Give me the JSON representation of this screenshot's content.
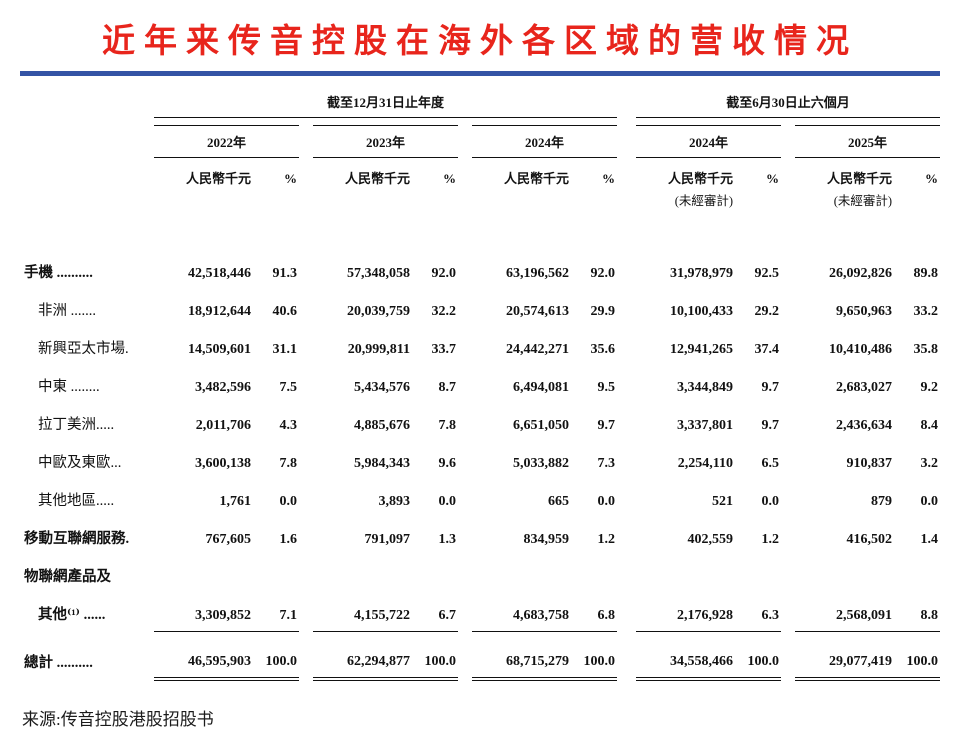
{
  "page": {
    "title": "近年来传音控股在海外各区域的营收情况",
    "source": "来源:传音控股港股招股书"
  },
  "colors": {
    "title_red": "#e8251c",
    "rule_blue": "#3454a5"
  },
  "table": {
    "group_headers": [
      {
        "label": "截至12月31日止年度"
      },
      {
        "label": "截至6月30日止六個月"
      }
    ],
    "years": [
      {
        "label": "2022年",
        "unit": "人民幣千元",
        "pct": "%",
        "note": ""
      },
      {
        "label": "2023年",
        "unit": "人民幣千元",
        "pct": "%",
        "note": ""
      },
      {
        "label": "2024年",
        "unit": "人民幣千元",
        "pct": "%",
        "note": ""
      },
      {
        "label": "2024年",
        "unit": "人民幣千元",
        "pct": "%",
        "note": "(未經審計)"
      },
      {
        "label": "2025年",
        "unit": "人民幣千元",
        "pct": "%",
        "note": "(未經審計)"
      }
    ],
    "rows": [
      {
        "label": "手機 ..........",
        "indent": false,
        "bold": true,
        "rule": "",
        "total": false,
        "values": [
          "42,518,446",
          "91.3",
          "57,348,058",
          "92.0",
          "63,196,562",
          "92.0",
          "31,978,979",
          "92.5",
          "26,092,826",
          "89.8"
        ]
      },
      {
        "label": "非洲 .......",
        "indent": true,
        "bold": false,
        "rule": "",
        "total": false,
        "values": [
          "18,912,644",
          "40.6",
          "20,039,759",
          "32.2",
          "20,574,613",
          "29.9",
          "10,100,433",
          "29.2",
          "9,650,963",
          "33.2"
        ]
      },
      {
        "label": "新興亞太市場.",
        "indent": true,
        "bold": false,
        "rule": "",
        "total": false,
        "values": [
          "14,509,601",
          "31.1",
          "20,999,811",
          "33.7",
          "24,442,271",
          "35.6",
          "12,941,265",
          "37.4",
          "10,410,486",
          "35.8"
        ]
      },
      {
        "label": "中東 ........",
        "indent": true,
        "bold": false,
        "rule": "",
        "total": false,
        "values": [
          "3,482,596",
          "7.5",
          "5,434,576",
          "8.7",
          "6,494,081",
          "9.5",
          "3,344,849",
          "9.7",
          "2,683,027",
          "9.2"
        ]
      },
      {
        "label": "拉丁美洲.....",
        "indent": true,
        "bold": false,
        "rule": "",
        "total": false,
        "values": [
          "2,011,706",
          "4.3",
          "4,885,676",
          "7.8",
          "6,651,050",
          "9.7",
          "3,337,801",
          "9.7",
          "2,436,634",
          "8.4"
        ]
      },
      {
        "label": "中歐及東歐...",
        "indent": true,
        "bold": false,
        "rule": "",
        "total": false,
        "values": [
          "3,600,138",
          "7.8",
          "5,984,343",
          "9.6",
          "5,033,882",
          "7.3",
          "2,254,110",
          "6.5",
          "910,837",
          "3.2"
        ]
      },
      {
        "label": "其他地區.....",
        "indent": true,
        "bold": false,
        "rule": "",
        "total": false,
        "values": [
          "1,761",
          "0.0",
          "3,893",
          "0.0",
          "665",
          "0.0",
          "521",
          "0.0",
          "879",
          "0.0"
        ]
      },
      {
        "label": "移動互聯網服務.",
        "indent": false,
        "bold": true,
        "rule": "",
        "total": false,
        "values": [
          "767,605",
          "1.6",
          "791,097",
          "1.3",
          "834,959",
          "1.2",
          "402,559",
          "1.2",
          "416,502",
          "1.4"
        ]
      },
      {
        "label": "物聯網產品及",
        "indent": false,
        "bold": true,
        "rule": "",
        "total": false,
        "values": []
      },
      {
        "label": "其他⁽¹⁾ ......",
        "indent": true,
        "bold": true,
        "rule": "single",
        "total": false,
        "values": [
          "3,309,852",
          "7.1",
          "4,155,722",
          "6.7",
          "4,683,758",
          "6.8",
          "2,176,928",
          "6.3",
          "2,568,091",
          "8.8"
        ]
      },
      {
        "label": "總計 ..........",
        "indent": false,
        "bold": true,
        "rule": "double",
        "total": true,
        "values": [
          "46,595,903",
          "100.0",
          "62,294,877",
          "100.0",
          "68,715,279",
          "100.0",
          "34,558,466",
          "100.0",
          "29,077,419",
          "100.0"
        ]
      }
    ]
  }
}
